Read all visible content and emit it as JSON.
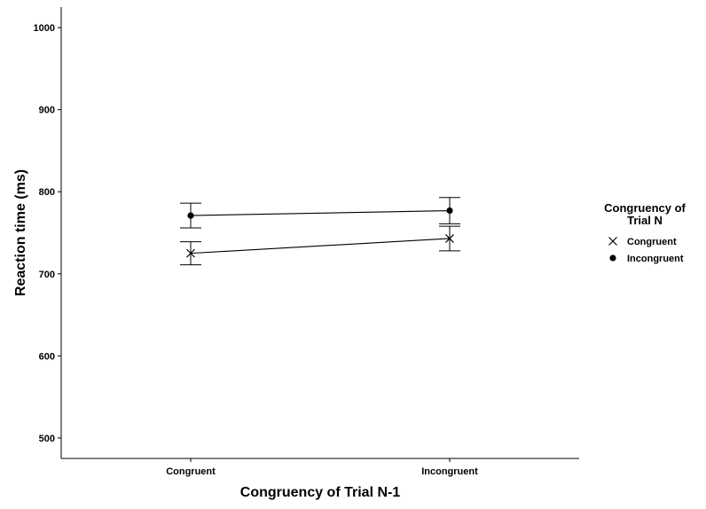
{
  "chart_data": {
    "type": "line",
    "title": "",
    "xlabel": "Congruency of Trial N-1",
    "ylabel": "Reaction time (ms)",
    "categories": [
      "Congruent",
      "Incongruent"
    ],
    "ylim": [
      475,
      1025
    ],
    "yticks": [
      500,
      600,
      700,
      800,
      900,
      1000
    ],
    "grid": false,
    "legend": {
      "title_lines": [
        "Congruency of",
        "Trial N"
      ],
      "placement": "right"
    },
    "series": [
      {
        "name": "Congruent",
        "marker": "x",
        "values": [
          725,
          743
        ],
        "err_low": [
          711,
          728
        ],
        "err_high": [
          739,
          758
        ]
      },
      {
        "name": "Incongruent",
        "marker": "circle",
        "values": [
          771,
          777
        ],
        "err_low": [
          756,
          761
        ],
        "err_high": [
          786,
          793
        ]
      }
    ]
  }
}
